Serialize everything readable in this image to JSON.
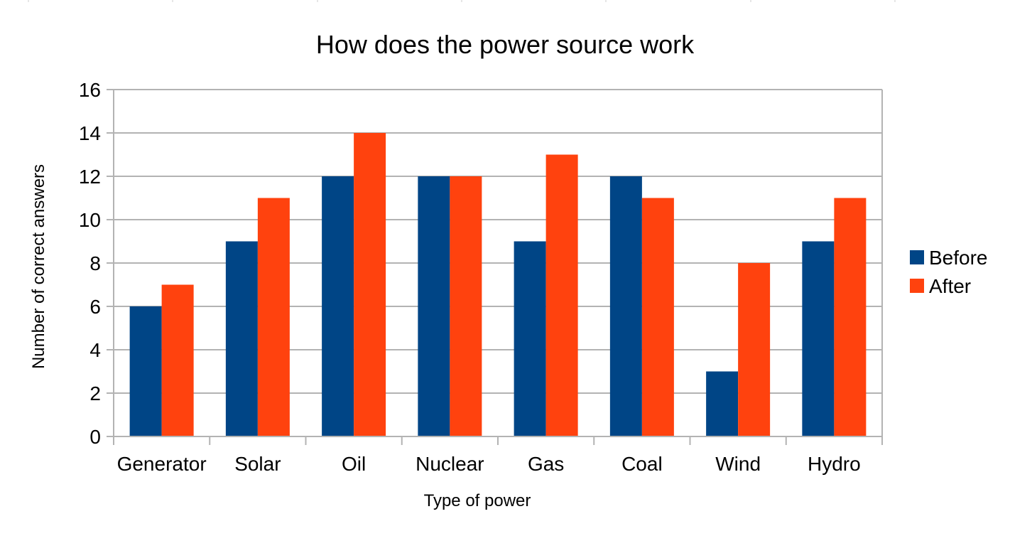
{
  "chart_data": {
    "type": "bar",
    "title": "How does the power source work",
    "xlabel": "Type of power",
    "ylabel": "Number  of  correct  answers",
    "categories": [
      "Generator",
      "Solar",
      "Oil",
      "Nuclear",
      "Gas",
      "Coal",
      "Wind",
      "Hydro"
    ],
    "series": [
      {
        "name": "Before",
        "color": "#004586",
        "values": [
          6,
          9,
          12,
          12,
          9,
          12,
          3,
          9
        ]
      },
      {
        "name": "After",
        "color": "#ff420e",
        "values": [
          7,
          11,
          14,
          12,
          13,
          11,
          8,
          11
        ]
      }
    ],
    "ylim": [
      0,
      16
    ],
    "yticks": [
      0,
      2,
      4,
      6,
      8,
      10,
      12,
      14,
      16
    ],
    "grid": true,
    "legend": "right"
  }
}
